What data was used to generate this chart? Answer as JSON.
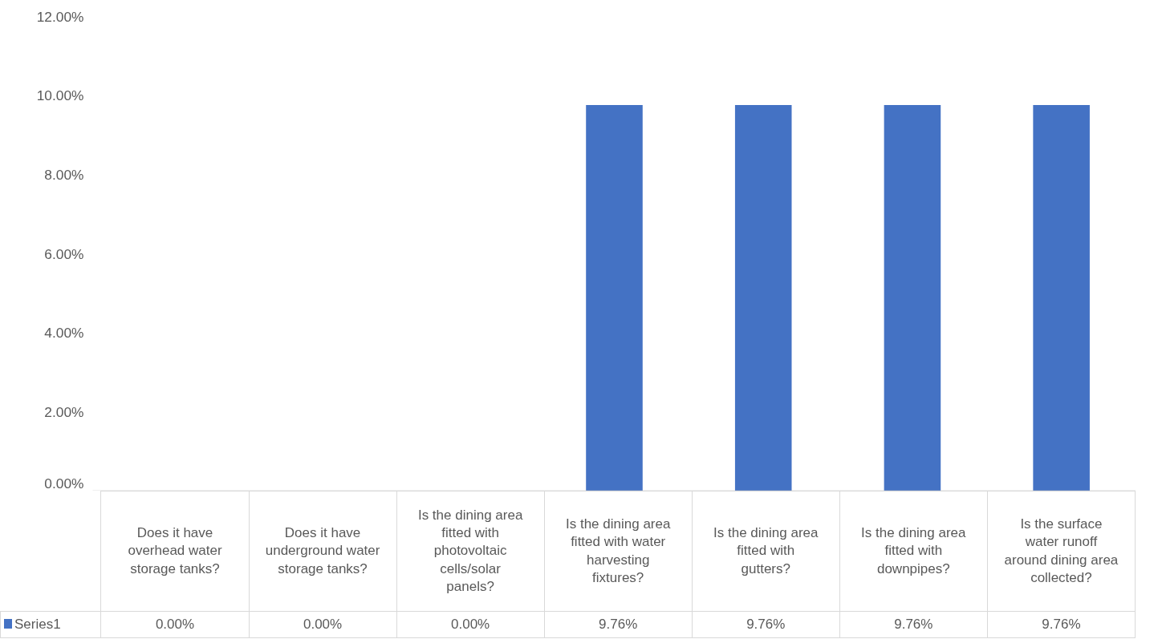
{
  "chart_data": {
    "type": "bar",
    "categories": [
      "Does it have overhead water storage tanks?",
      "Does it have underground water storage tanks?",
      "Is the dining area fitted with photovoltaic cells/solar panels?",
      "Is the dining area fitted with water harvesting fixtures?",
      "Is the dining area fitted with gutters?",
      "Is the dining area fitted with downpipes?",
      "Is the surface water runoff around dining area collected?"
    ],
    "series": [
      {
        "name": "Series1",
        "color": "#4472c4",
        "values": [
          0,
          0,
          0,
          9.76,
          9.76,
          9.76,
          9.76
        ],
        "value_labels": [
          "0.00%",
          "0.00%",
          "0.00%",
          "9.76%",
          "9.76%",
          "9.76%",
          "9.76%"
        ]
      }
    ],
    "ylim": [
      0,
      12
    ],
    "yticks": [
      {
        "value": 0,
        "label": "0.00%"
      },
      {
        "value": 2,
        "label": "2.00%"
      },
      {
        "value": 4,
        "label": "4.00%"
      },
      {
        "value": 6,
        "label": "6.00%"
      },
      {
        "value": 8,
        "label": "8.00%"
      },
      {
        "value": 10,
        "label": "10.00%"
      },
      {
        "value": 12,
        "label": "12.00%"
      }
    ],
    "grid": false,
    "legend": "bottom left"
  }
}
